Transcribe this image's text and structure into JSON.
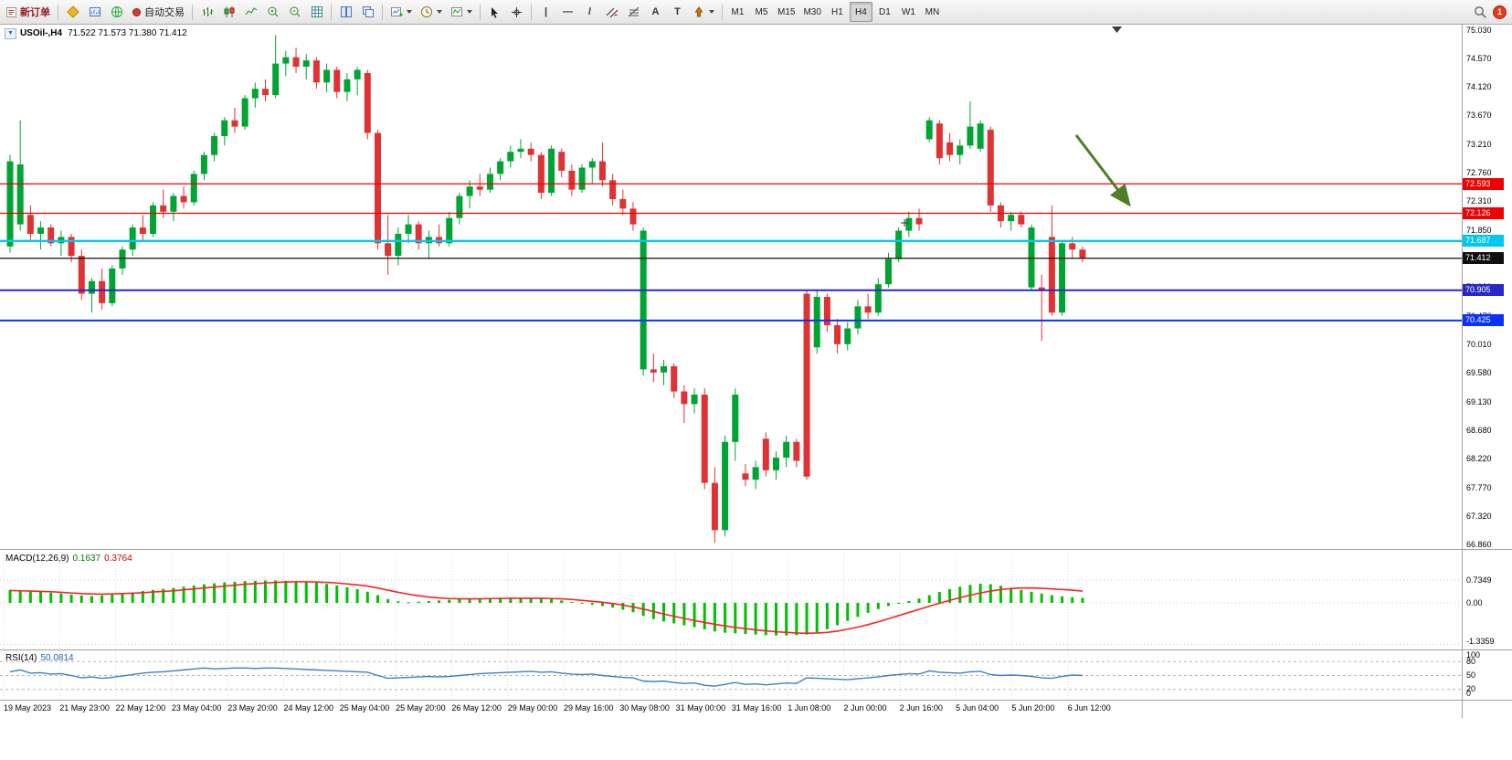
{
  "toolbar": {
    "new_order_label": "新订单",
    "autotrade_label": "自动交易",
    "tools": {
      "vline": "|",
      "hline": "—",
      "trendline": "/",
      "text_a": "A",
      "text_t": "T"
    },
    "timeframes": [
      "M1",
      "M5",
      "M15",
      "M30",
      "H1",
      "H4",
      "D1",
      "W1",
      "MN"
    ],
    "active_timeframe": "H4",
    "notification_count": "1"
  },
  "chart": {
    "title": "USOil-,H4",
    "ohlc": "71.522 71.573 71.380 71.412",
    "up_color": "#00a432",
    "down_color": "#e03232",
    "arrow_color": "#507d26",
    "price_axis": [
      "75.030",
      "74.570",
      "74.120",
      "73.670",
      "73.210",
      "72.760",
      "72.310",
      "71.850",
      "71.390",
      "70.930",
      "70.470",
      "70.010",
      "69.580",
      "69.130",
      "68.680",
      "68.220",
      "67.770",
      "67.320",
      "66.860"
    ],
    "levels": [
      {
        "label": "72.593",
        "price": 72.593,
        "color": "#f00000",
        "text_color": "#ffffff",
        "width": 1.3
      },
      {
        "label": "72.126",
        "price": 72.126,
        "color": "#f00000",
        "text_color": "#ffffff",
        "width": 1.3
      },
      {
        "label": "71.687",
        "price": 71.687,
        "color": "#00c8f0",
        "text_color": "#ffffff",
        "width": 2.4
      },
      {
        "label": "71.412",
        "price": 71.412,
        "color": "#101010",
        "text_color": "#ffffff",
        "width": 1.2
      },
      {
        "label": "70.905",
        "price": 70.905,
        "color": "#2828c8",
        "text_color": "#ffffff",
        "width": 2
      },
      {
        "label": "70.425",
        "price": 70.425,
        "color": "#0a32ff",
        "text_color": "#ffffff",
        "width": 2
      }
    ]
  },
  "chart_data": {
    "type": "candlestick",
    "symbol": "USOil-",
    "timeframe": "H4",
    "price_range": [
      66.86,
      75.03
    ],
    "candles": [
      [
        71.6,
        73.05,
        71.5,
        72.95
      ],
      [
        71.95,
        73.6,
        71.85,
        72.9
      ],
      [
        72.1,
        72.25,
        71.7,
        71.8
      ],
      [
        71.8,
        72.0,
        71.55,
        71.9
      ],
      [
        71.9,
        71.95,
        71.6,
        71.65
      ],
      [
        71.65,
        71.85,
        71.45,
        71.75
      ],
      [
        71.75,
        71.8,
        71.35,
        71.45
      ],
      [
        71.45,
        71.55,
        70.75,
        70.85
      ],
      [
        70.85,
        71.1,
        70.55,
        71.05
      ],
      [
        71.05,
        71.25,
        70.6,
        70.7
      ],
      [
        70.7,
        71.3,
        70.65,
        71.25
      ],
      [
        71.25,
        71.6,
        71.15,
        71.55
      ],
      [
        71.55,
        71.95,
        71.45,
        71.9
      ],
      [
        71.9,
        72.1,
        71.7,
        71.8
      ],
      [
        71.8,
        72.3,
        71.75,
        72.25
      ],
      [
        72.25,
        72.5,
        72.05,
        72.15
      ],
      [
        72.15,
        72.45,
        72.0,
        72.4
      ],
      [
        72.4,
        72.55,
        72.2,
        72.3
      ],
      [
        72.3,
        72.8,
        72.25,
        72.75
      ],
      [
        72.75,
        73.1,
        72.65,
        73.05
      ],
      [
        73.05,
        73.4,
        72.95,
        73.35
      ],
      [
        73.35,
        73.65,
        73.2,
        73.6
      ],
      [
        73.6,
        73.8,
        73.4,
        73.5
      ],
      [
        73.5,
        74.0,
        73.45,
        73.95
      ],
      [
        73.95,
        74.2,
        73.8,
        74.1
      ],
      [
        74.1,
        74.25,
        73.9,
        74.0
      ],
      [
        74.0,
        74.95,
        73.95,
        74.5
      ],
      [
        74.5,
        74.7,
        74.3,
        74.6
      ],
      [
        74.6,
        74.75,
        74.35,
        74.45
      ],
      [
        74.45,
        74.65,
        74.25,
        74.55
      ],
      [
        74.55,
        74.6,
        74.1,
        74.2
      ],
      [
        74.2,
        74.5,
        74.05,
        74.4
      ],
      [
        74.4,
        74.45,
        73.95,
        74.05
      ],
      [
        74.05,
        74.35,
        73.9,
        74.25
      ],
      [
        74.25,
        74.45,
        74.0,
        74.4
      ],
      [
        74.35,
        74.4,
        73.3,
        73.4
      ],
      [
        73.4,
        73.45,
        71.55,
        71.65
      ],
      [
        71.65,
        72.1,
        71.15,
        71.45
      ],
      [
        71.45,
        71.9,
        71.3,
        71.8
      ],
      [
        71.8,
        72.1,
        71.65,
        71.95
      ],
      [
        71.95,
        72.0,
        71.55,
        71.65
      ],
      [
        71.65,
        71.85,
        71.4,
        71.75
      ],
      [
        71.75,
        71.95,
        71.6,
        71.65
      ],
      [
        71.65,
        72.15,
        71.6,
        72.05
      ],
      [
        72.05,
        72.45,
        71.95,
        72.4
      ],
      [
        72.4,
        72.65,
        72.2,
        72.55
      ],
      [
        72.55,
        72.75,
        72.4,
        72.5
      ],
      [
        72.5,
        72.85,
        72.45,
        72.75
      ],
      [
        72.75,
        73.0,
        72.65,
        72.95
      ],
      [
        72.95,
        73.2,
        72.85,
        73.1
      ],
      [
        73.1,
        73.3,
        73.0,
        73.15
      ],
      [
        73.15,
        73.25,
        72.95,
        73.05
      ],
      [
        73.05,
        73.1,
        72.35,
        72.45
      ],
      [
        72.45,
        73.2,
        72.4,
        73.15
      ],
      [
        73.1,
        73.15,
        72.7,
        72.8
      ],
      [
        72.8,
        72.9,
        72.4,
        72.5
      ],
      [
        72.5,
        72.9,
        72.45,
        72.85
      ],
      [
        72.85,
        73.0,
        72.6,
        72.95
      ],
      [
        72.95,
        73.25,
        72.55,
        72.65
      ],
      [
        72.65,
        72.75,
        72.25,
        72.35
      ],
      [
        72.35,
        72.5,
        72.1,
        72.2
      ],
      [
        72.2,
        72.3,
        71.85,
        71.95
      ],
      [
        69.65,
        71.9,
        69.55,
        71.85
      ],
      [
        69.65,
        69.9,
        69.45,
        69.6
      ],
      [
        69.6,
        69.8,
        69.4,
        69.7
      ],
      [
        69.7,
        69.75,
        69.2,
        69.3
      ],
      [
        69.3,
        69.4,
        68.8,
        69.1
      ],
      [
        69.1,
        69.35,
        68.95,
        69.25
      ],
      [
        69.25,
        69.35,
        67.75,
        67.85
      ],
      [
        67.85,
        68.1,
        66.9,
        67.1
      ],
      [
        67.1,
        68.6,
        67.0,
        68.5
      ],
      [
        68.5,
        69.35,
        68.2,
        69.25
      ],
      [
        68.0,
        68.15,
        67.8,
        67.9
      ],
      [
        67.9,
        68.2,
        67.75,
        68.1
      ],
      [
        68.55,
        68.65,
        67.95,
        68.05
      ],
      [
        68.05,
        68.35,
        67.9,
        68.25
      ],
      [
        68.25,
        68.6,
        68.1,
        68.5
      ],
      [
        68.5,
        68.55,
        68.1,
        68.2
      ],
      [
        70.85,
        70.9,
        67.9,
        67.95
      ],
      [
        70.0,
        70.9,
        69.9,
        70.8
      ],
      [
        70.8,
        70.85,
        70.25,
        70.35
      ],
      [
        70.35,
        70.45,
        69.9,
        70.05
      ],
      [
        70.05,
        70.4,
        69.95,
        70.3
      ],
      [
        70.3,
        70.75,
        70.2,
        70.65
      ],
      [
        70.65,
        70.85,
        70.45,
        70.55
      ],
      [
        70.55,
        71.1,
        70.5,
        71.0
      ],
      [
        71.0,
        71.5,
        70.95,
        71.4
      ],
      [
        71.4,
        71.9,
        71.35,
        71.85
      ],
      [
        71.85,
        72.15,
        71.75,
        72.05
      ],
      [
        72.05,
        72.2,
        71.85,
        71.95
      ],
      [
        73.3,
        73.65,
        73.25,
        73.6
      ],
      [
        73.55,
        73.6,
        72.9,
        73.0
      ],
      [
        73.25,
        73.4,
        72.95,
        73.05
      ],
      [
        73.05,
        73.3,
        72.9,
        73.2
      ],
      [
        73.2,
        73.9,
        73.15,
        73.5
      ],
      [
        73.15,
        73.6,
        73.1,
        73.55
      ],
      [
        73.45,
        73.5,
        72.15,
        72.25
      ],
      [
        72.25,
        72.3,
        71.9,
        72.0
      ],
      [
        72.0,
        72.15,
        71.85,
        72.1
      ],
      [
        72.1,
        72.15,
        71.9,
        71.95
      ],
      [
        70.95,
        71.95,
        70.9,
        71.9
      ],
      [
        70.95,
        71.15,
        70.1,
        70.9
      ],
      [
        71.75,
        72.25,
        70.5,
        70.55
      ],
      [
        70.55,
        71.7,
        70.5,
        71.65
      ],
      [
        71.65,
        71.75,
        71.4,
        71.55
      ],
      [
        71.55,
        71.6,
        71.35,
        71.41
      ]
    ]
  },
  "macd": {
    "label": "MACD(12,26,9)",
    "value_main": "0.1637",
    "value_signal": "0.3764",
    "histogram_color": "#00c000",
    "signal_color": "#ff2020",
    "axis": [
      {
        "text": "0.7349",
        "value": 0.7349
      },
      {
        "text": "0.00",
        "value": 0
      },
      {
        "text": "-1.3359",
        "value": -1.3359
      }
    ],
    "histogram": [
      0.42,
      0.4,
      0.38,
      0.36,
      0.33,
      0.3,
      0.27,
      0.24,
      0.22,
      0.24,
      0.27,
      0.3,
      0.34,
      0.38,
      0.42,
      0.45,
      0.48,
      0.52,
      0.56,
      0.6,
      0.63,
      0.66,
      0.68,
      0.7,
      0.71,
      0.72,
      0.72,
      0.71,
      0.7,
      0.68,
      0.65,
      0.61,
      0.56,
      0.5,
      0.44,
      0.36,
      0.25,
      0.12,
      0.05,
      0.02,
      0.04,
      0.06,
      0.08,
      0.1,
      0.12,
      0.14,
      0.15,
      0.16,
      0.17,
      0.17,
      0.16,
      0.15,
      0.14,
      0.12,
      0.08,
      0.03,
      -0.02,
      -0.06,
      -0.1,
      -0.15,
      -0.22,
      -0.3,
      -0.42,
      -0.52,
      -0.6,
      -0.66,
      -0.72,
      -0.78,
      -0.85,
      -0.92,
      -0.96,
      -0.98,
      -1.0,
      -1.02,
      -1.04,
      -1.05,
      -1.05,
      -1.04,
      -1.02,
      -0.95,
      -0.85,
      -0.72,
      -0.58,
      -0.45,
      -0.32,
      -0.2,
      -0.1,
      -0.02,
      0.06,
      0.14,
      0.25,
      0.35,
      0.44,
      0.52,
      0.58,
      0.62,
      0.6,
      0.55,
      0.48,
      0.42,
      0.36,
      0.3,
      0.25,
      0.21,
      0.18,
      0.16
    ],
    "signal": [
      0.4,
      0.39,
      0.38,
      0.37,
      0.36,
      0.34,
      0.32,
      0.3,
      0.29,
      0.28,
      0.29,
      0.3,
      0.31,
      0.33,
      0.35,
      0.37,
      0.39,
      0.42,
      0.45,
      0.48,
      0.51,
      0.54,
      0.57,
      0.6,
      0.62,
      0.64,
      0.66,
      0.67,
      0.68,
      0.68,
      0.67,
      0.66,
      0.64,
      0.61,
      0.58,
      0.54,
      0.48,
      0.41,
      0.34,
      0.28,
      0.23,
      0.19,
      0.16,
      0.14,
      0.13,
      0.13,
      0.13,
      0.14,
      0.14,
      0.15,
      0.15,
      0.15,
      0.15,
      0.14,
      0.13,
      0.11,
      0.08,
      0.05,
      0.02,
      -0.02,
      -0.07,
      -0.13,
      -0.2,
      -0.28,
      -0.36,
      -0.43,
      -0.5,
      -0.57,
      -0.63,
      -0.69,
      -0.74,
      -0.79,
      -0.83,
      -0.87,
      -0.9,
      -0.93,
      -0.95,
      -0.97,
      -0.98,
      -0.97,
      -0.95,
      -0.91,
      -0.85,
      -0.78,
      -0.7,
      -0.61,
      -0.51,
      -0.41,
      -0.31,
      -0.21,
      -0.11,
      -0.01,
      0.08,
      0.17,
      0.25,
      0.32,
      0.38,
      0.43,
      0.46,
      0.48,
      0.48,
      0.47,
      0.45,
      0.43,
      0.41,
      0.38
    ]
  },
  "rsi": {
    "label": "RSI(14)",
    "value": "50.0814",
    "line_color": "#3f7fc4",
    "axis": [
      {
        "text": "100",
        "value": 100
      },
      {
        "text": "80",
        "value": 80
      },
      {
        "text": "50",
        "value": 50
      },
      {
        "text": "20",
        "value": 20
      },
      {
        "text": "0",
        "value": 0
      }
    ],
    "levels": [
      80,
      50,
      20
    ],
    "values": [
      58,
      62,
      55,
      56,
      53,
      54,
      50,
      45,
      47,
      44,
      46,
      49,
      52,
      55,
      57,
      58,
      60,
      62,
      64,
      66,
      64,
      65,
      66,
      66,
      65,
      66,
      66,
      65,
      64,
      63,
      62,
      61,
      60,
      59,
      58,
      57,
      50,
      44,
      45,
      46,
      47,
      48,
      47,
      48,
      50,
      52,
      54,
      55,
      56,
      57,
      58,
      59,
      57,
      58,
      55,
      53,
      52,
      53,
      50,
      48,
      46,
      45,
      38,
      37,
      38,
      35,
      33,
      34,
      29,
      27,
      31,
      35,
      31,
      32,
      30,
      32,
      34,
      33,
      45,
      44,
      43,
      42,
      41,
      43,
      45,
      47,
      50,
      52,
      54,
      53,
      60,
      57,
      56,
      55,
      58,
      59,
      52,
      50,
      51,
      50,
      48,
      45,
      44,
      48,
      51,
      50
    ]
  },
  "time_axis": [
    "19 May 2023",
    "21 May 23:00",
    "22 May 12:00",
    "23 May 04:00",
    "23 May 20:00",
    "24 May 12:00",
    "25 May 04:00",
    "25 May 20:00",
    "26 May 12:00",
    "29 May 00:00",
    "29 May 16:00",
    "30 May 08:00",
    "31 May 00:00",
    "31 May 16:00",
    "1 Jun 08:00",
    "2 Jun 00:00",
    "2 Jun 16:00",
    "5 Jun 04:00",
    "5 Jun 20:00",
    "6 Jun 12:00"
  ]
}
